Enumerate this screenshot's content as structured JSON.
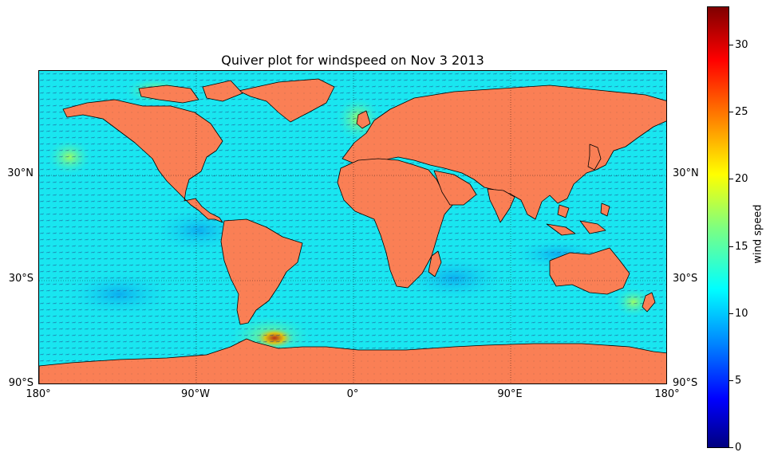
{
  "title": "Quiver plot for windspeed on Nov 3 2013",
  "colors": {
    "ocean": "#19e6f0",
    "land": "#fa7f55",
    "coast": "#000000",
    "arrow": "#1a3a8a"
  },
  "axes": {
    "lat_labels": [
      "30°N",
      "30°S",
      "90°S"
    ],
    "lon_labels": [
      "180°",
      "90°W",
      "0°",
      "90°E",
      "180°"
    ]
  },
  "colorbar": {
    "label": "wind speed",
    "ticks": [
      "0",
      "5",
      "10",
      "15",
      "20",
      "25",
      "30"
    ],
    "min": 0,
    "max": 32.8,
    "colormap": "jet"
  }
}
